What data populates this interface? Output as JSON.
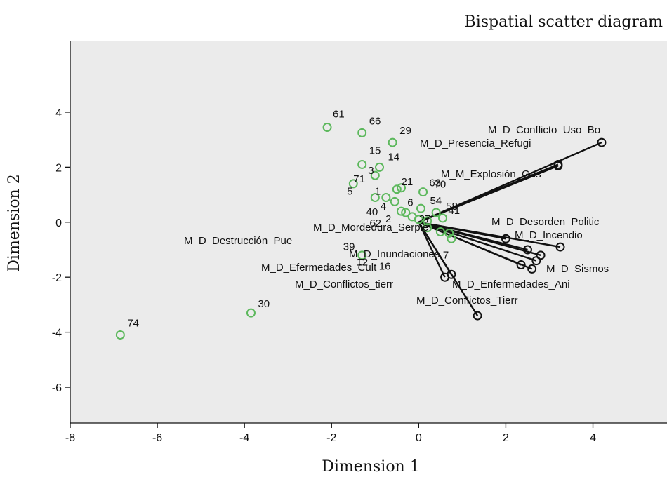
{
  "chart_data": {
    "type": "scatter",
    "title": "Bispatial scatter diagram",
    "xlabel": "Dimension 1",
    "ylabel": "Dimension 2",
    "xlim": [
      -8,
      5.7
    ],
    "ylim": [
      -7.3,
      6.6
    ],
    "xticks": [
      -8,
      -6,
      -4,
      -2,
      0,
      2,
      4
    ],
    "yticks": [
      -6,
      -4,
      -2,
      0,
      2,
      4
    ],
    "grid": false,
    "colors": {
      "plot_bg": "#ebebeb",
      "point": "#5cb85c",
      "vector": "#111111"
    },
    "object_points": [
      {
        "label": "61",
        "x": -2.1,
        "y": 3.45
      },
      {
        "label": "66",
        "x": -1.3,
        "y": 3.25
      },
      {
        "label": "29",
        "x": -0.6,
        "y": 2.9
      },
      {
        "label": "15",
        "x": -1.3,
        "y": 2.1
      },
      {
        "label": "14",
        "x": -0.9,
        "y": 2.0
      },
      {
        "label": "3",
        "x": -1.0,
        "y": 1.7
      },
      {
        "label": "21",
        "x": -0.4,
        "y": 1.25
      },
      {
        "label": "63",
        "x": -0.5,
        "y": 1.2
      },
      {
        "label": "70",
        "x": 0.1,
        "y": 1.1
      },
      {
        "label": "71",
        "x": -1.5,
        "y": 1.4
      },
      {
        "label": "5",
        "x": -1.0,
        "y": 0.9
      },
      {
        "label": "1",
        "x": -0.75,
        "y": 0.9
      },
      {
        "label": "6",
        "x": -0.55,
        "y": 0.75
      },
      {
        "label": "54",
        "x": 0.05,
        "y": 0.5
      },
      {
        "label": "58",
        "x": 0.4,
        "y": 0.35
      },
      {
        "label": "40",
        "x": -0.4,
        "y": 0.4
      },
      {
        "label": "4",
        "x": -0.3,
        "y": 0.35
      },
      {
        "label": "2",
        "x": -0.15,
        "y": 0.2
      },
      {
        "label": "41",
        "x": 0.55,
        "y": 0.15
      },
      {
        "label": "27",
        "x": 0.2,
        "y": 0.05
      },
      {
        "label": "62",
        "x": 0.0,
        "y": 0.1
      },
      {
        "label": "39",
        "x": 0.2,
        "y": -0.2
      },
      {
        "label": "12",
        "x": 0.5,
        "y": -0.35
      },
      {
        "label": "16",
        "x": 0.7,
        "y": -0.4
      },
      {
        "label": "7",
        "x": 0.75,
        "y": -0.6
      },
      {
        "label": "",
        "x": -1.3,
        "y": -1.2
      },
      {
        "label": "30",
        "x": -3.85,
        "y": -3.3
      },
      {
        "label": "74",
        "x": -6.85,
        "y": -4.1
      }
    ],
    "variable_points": [
      {
        "label": "M_D_Conflicto_Uso_Bo",
        "x": 4.2,
        "y": 2.9
      },
      {
        "label": "M_D_Presencia_Refugi",
        "x": 3.2,
        "y": 2.1
      },
      {
        "label": "M_M_Explosión_Gas",
        "x": 3.2,
        "y": 2.05
      },
      {
        "label": "M_D_Desorden_Politic",
        "x": 3.25,
        "y": -0.9
      },
      {
        "label": "M_D_Incendio",
        "x": 2.8,
        "y": -1.2
      },
      {
        "label": "M_D_Mordedura_Serpie",
        "x": 2.5,
        "y": -1.0
      },
      {
        "label": "M_D_Destrucción_Pue",
        "x": 2.0,
        "y": -0.6
      },
      {
        "label": "M_D_Sismos",
        "x": 2.7,
        "y": -1.4
      },
      {
        "label": "M_D_Inundaciones",
        "x": 2.35,
        "y": -1.55
      },
      {
        "label": "M_D_Efermedades_Cult",
        "x": 2.6,
        "y": -1.7
      },
      {
        "label": "M_D_Enfermedades_Ani",
        "x": 0.75,
        "y": -1.9
      },
      {
        "label": "M_D_Conflictos_tierr",
        "x": 0.6,
        "y": -2.0
      },
      {
        "label": "M_D_Conflictos_Tierr",
        "x": 1.35,
        "y": -3.4
      }
    ]
  }
}
